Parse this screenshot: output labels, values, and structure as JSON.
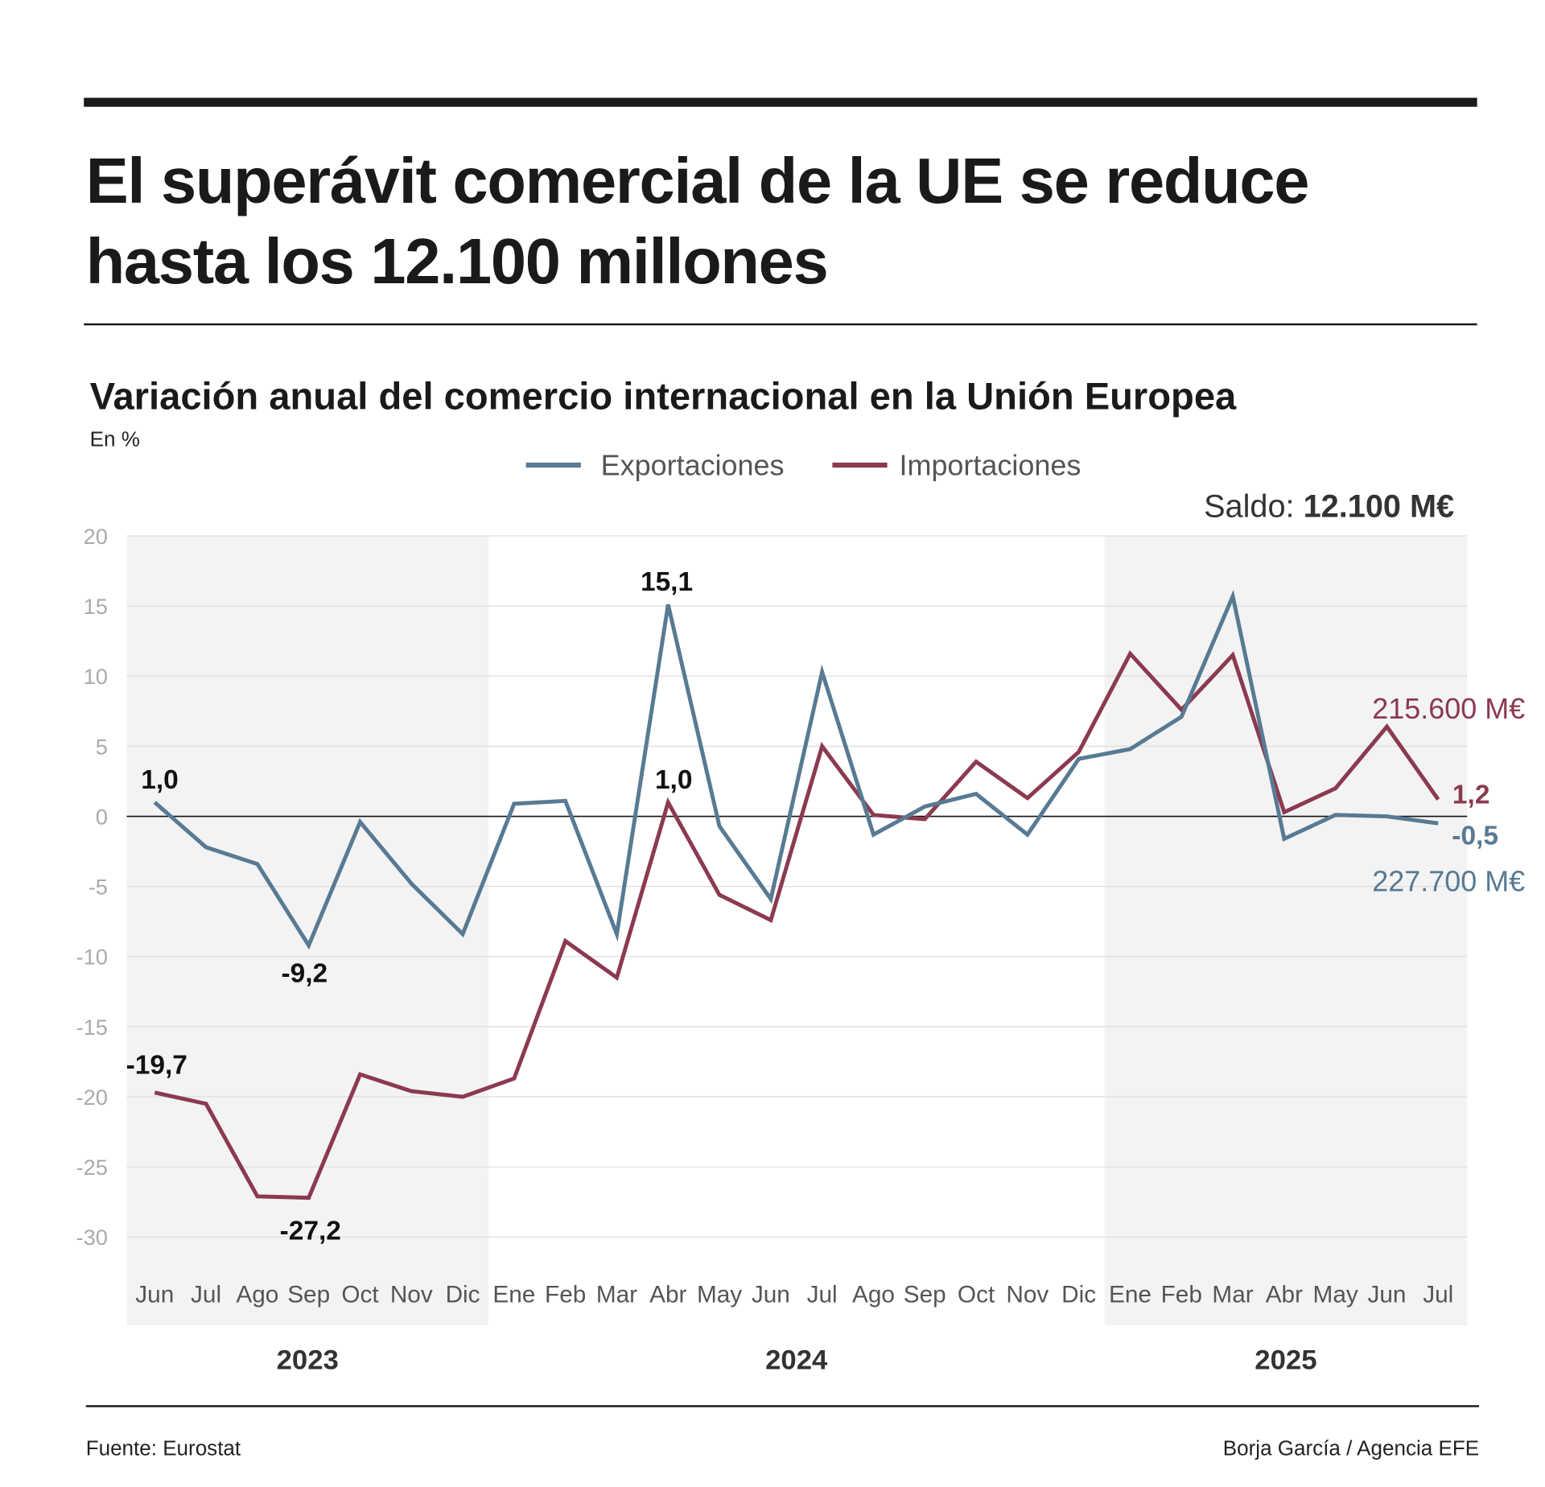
{
  "header": {
    "title_line1": "El superávit comercial de la UE se reduce",
    "title_line2": "hasta los 12.100 millones"
  },
  "chart_data": {
    "type": "line",
    "title": "Variación anual del comercio internacional en la Unión Europea",
    "ylabel": "En %",
    "ylim": [
      -30,
      20
    ],
    "yticks": [
      "20",
      "15",
      "10",
      "5",
      "0",
      "-5",
      "-10",
      "-15",
      "-20",
      "-25",
      "-30"
    ],
    "grid": true,
    "legend_position": "top-center",
    "categories": [
      "Jun",
      "Jul",
      "Ago",
      "Sep",
      "Oct",
      "Nov",
      "Dic",
      "Ene",
      "Feb",
      "Mar",
      "Abr",
      "May",
      "Jun",
      "Jul",
      "Ago",
      "Sep",
      "Oct",
      "Nov",
      "Dic",
      "Ene",
      "Feb",
      "Mar",
      "Abr",
      "May",
      "Jun",
      "Jul"
    ],
    "years": [
      {
        "label": "2023",
        "shaded": true
      },
      {
        "label": "2024",
        "shaded": false
      },
      {
        "label": "2025",
        "shaded": true
      }
    ],
    "series": [
      {
        "name": "Exportaciones",
        "color": "#587a93",
        "values": [
          1.0,
          -2.2,
          -3.4,
          -9.2,
          -0.4,
          -4.8,
          -8.4,
          0.9,
          1.1,
          -8.4,
          15.1,
          -0.7,
          -5.9,
          10.3,
          -1.3,
          0.7,
          1.6,
          -1.3,
          4.1,
          4.8,
          7.1,
          15.7,
          -1.6,
          0.1,
          0.0,
          -0.5
        ]
      },
      {
        "name": "Importaciones",
        "color": "#8b3a50",
        "values": [
          -19.7,
          -20.5,
          -27.1,
          -27.2,
          -18.4,
          -19.6,
          -20.0,
          -18.7,
          -8.9,
          -11.5,
          1.0,
          -5.6,
          -7.4,
          5.0,
          0.1,
          -0.2,
          3.9,
          1.3,
          4.6,
          11.6,
          7.6,
          11.5,
          0.3,
          2.0,
          6.4,
          1.2
        ]
      }
    ],
    "annotations": {
      "exp_jun23": "1,0",
      "exp_sep23": "-9,2",
      "exp_abr24": "15,1",
      "exp_jul25": "-0,5",
      "imp_jun23": "-19,7",
      "imp_sep23": "-27,2",
      "imp_abr24": "1,0",
      "imp_jul25": "1,2",
      "imp_total": "215.600 M€",
      "exp_total": "227.700 M€",
      "saldo_label": "Saldo:",
      "saldo_value": "12.100 M€"
    }
  },
  "footer": {
    "source": "Fuente: Eurostat",
    "credit": "Borja García / Agencia EFE"
  }
}
